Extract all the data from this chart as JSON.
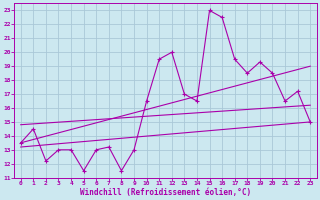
{
  "xlabel": "Windchill (Refroidissement éolien,°C)",
  "bg_color": "#cce8f0",
  "grid_color": "#aac8d8",
  "line_color": "#aa00aa",
  "xlim": [
    -0.5,
    23.5
  ],
  "ylim": [
    11,
    23.5
  ],
  "yticks": [
    11,
    12,
    13,
    14,
    15,
    16,
    17,
    18,
    19,
    20,
    21,
    22,
    23
  ],
  "xticks": [
    0,
    1,
    2,
    3,
    4,
    5,
    6,
    7,
    8,
    9,
    10,
    11,
    12,
    13,
    14,
    15,
    16,
    17,
    18,
    19,
    20,
    21,
    22,
    23
  ],
  "series1_x": [
    0,
    1,
    2,
    3,
    4,
    5,
    6,
    7,
    8,
    9,
    10,
    11,
    12,
    13,
    14,
    15,
    16,
    17,
    18,
    19,
    20,
    21,
    22,
    23
  ],
  "series1_y": [
    13.5,
    14.5,
    12.2,
    13.0,
    13.0,
    11.5,
    13.0,
    13.2,
    11.5,
    13.0,
    16.5,
    19.5,
    20.0,
    17.0,
    16.5,
    23.0,
    22.5,
    19.5,
    18.5,
    19.3,
    18.5,
    16.5,
    17.2,
    15.0
  ],
  "series2_x": [
    0,
    23
  ],
  "series2_y": [
    14.8,
    16.2
  ],
  "series3_x": [
    0,
    23
  ],
  "series3_y": [
    13.5,
    19.0
  ],
  "series4_x": [
    0,
    23
  ],
  "series4_y": [
    13.2,
    15.0
  ]
}
